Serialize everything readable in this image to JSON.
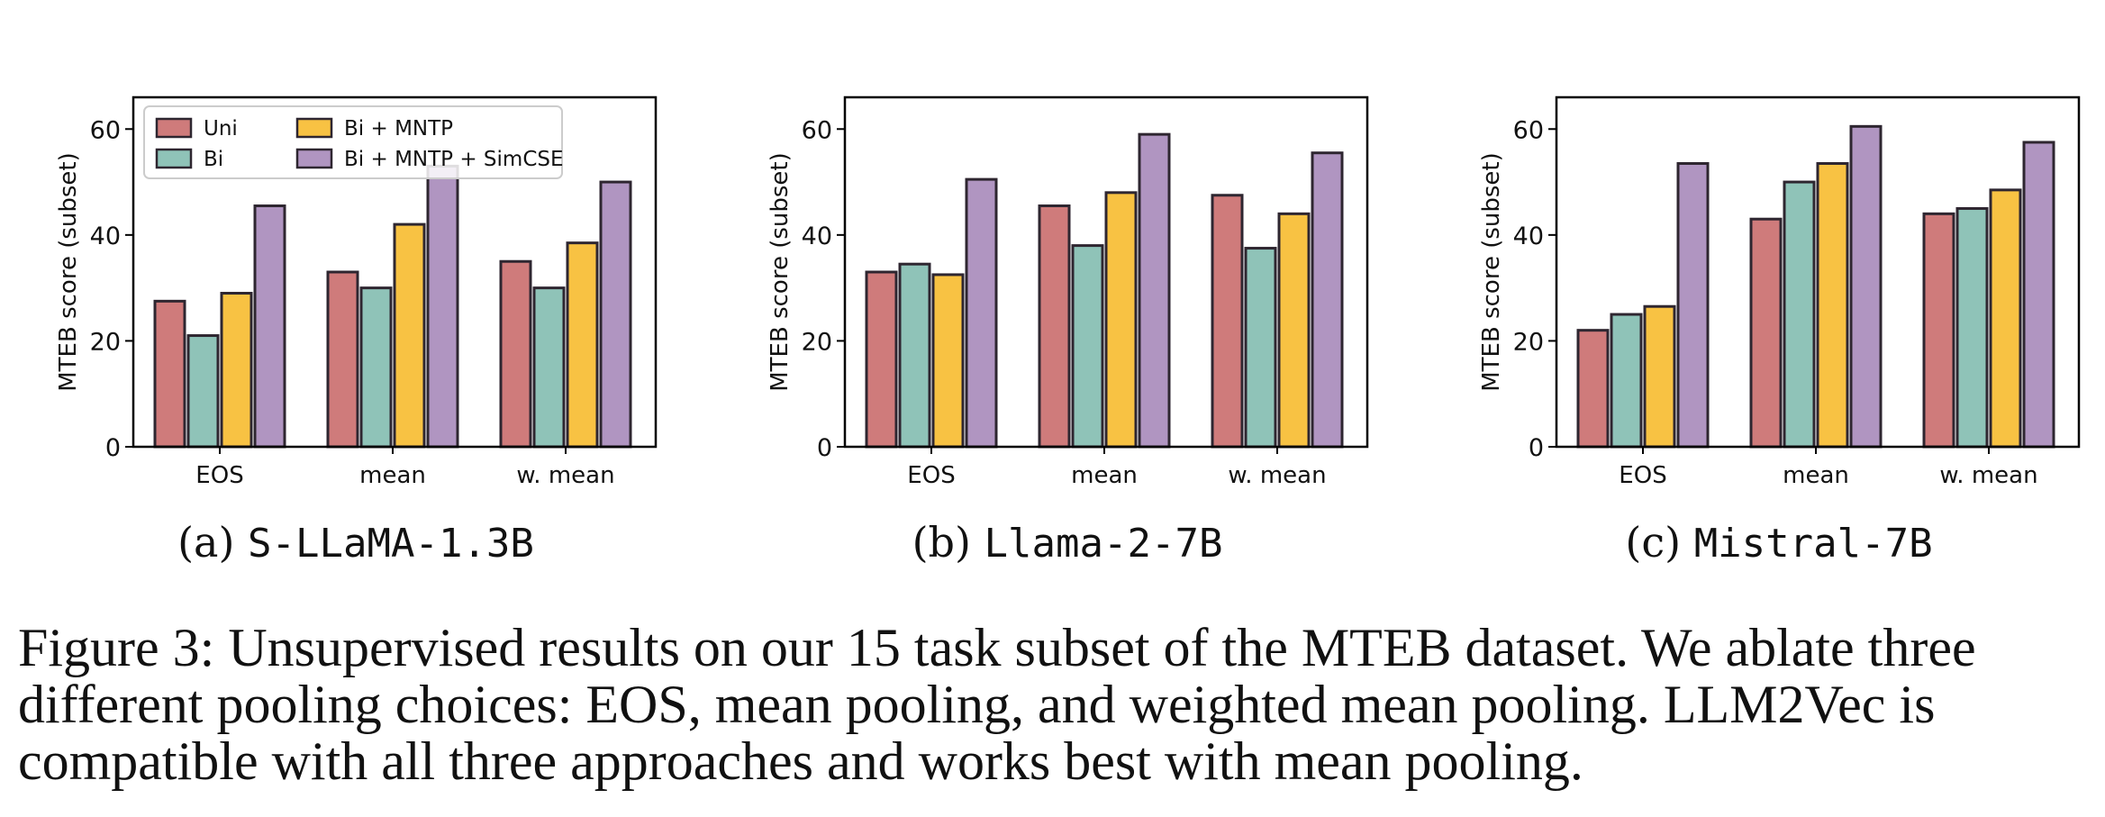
{
  "chart_data": [
    {
      "type": "bar",
      "panel_label": "(a)",
      "panel_model": "S-LLaMA-1.3B",
      "categories": [
        "EOS",
        "mean",
        "w. mean"
      ],
      "ylabel": "MTEB score (subset)",
      "ylim": [
        0,
        66
      ],
      "yticks": [
        "0",
        "20",
        "40",
        "60"
      ],
      "grid": false,
      "legend_position": "top-left",
      "series": [
        {
          "name": "Uni",
          "values": [
            27.5,
            33,
            35
          ]
        },
        {
          "name": "Bi",
          "values": [
            21,
            30,
            30
          ]
        },
        {
          "name": "Bi + MNTP",
          "values": [
            29,
            42,
            38.5
          ]
        },
        {
          "name": "Bi + MNTP + SimCSE",
          "values": [
            45.5,
            53,
            50
          ]
        }
      ]
    },
    {
      "type": "bar",
      "panel_label": "(b)",
      "panel_model": "Llama-2-7B",
      "categories": [
        "EOS",
        "mean",
        "w. mean"
      ],
      "ylabel": "MTEB score (subset)",
      "ylim": [
        0,
        66
      ],
      "yticks": [
        "0",
        "20",
        "40",
        "60"
      ],
      "grid": false,
      "series": [
        {
          "name": "Uni",
          "values": [
            33,
            45.5,
            47.5
          ]
        },
        {
          "name": "Bi",
          "values": [
            34.5,
            38,
            37.5
          ]
        },
        {
          "name": "Bi + MNTP",
          "values": [
            32.5,
            48,
            44
          ]
        },
        {
          "name": "Bi + MNTP + SimCSE",
          "values": [
            50.5,
            59,
            55.5
          ]
        }
      ]
    },
    {
      "type": "bar",
      "panel_label": "(c)",
      "panel_model": "Mistral-7B",
      "categories": [
        "EOS",
        "mean",
        "w. mean"
      ],
      "ylabel": "MTEB score (subset)",
      "ylim": [
        0,
        66
      ],
      "yticks": [
        "0",
        "20",
        "40",
        "60"
      ],
      "grid": false,
      "series": [
        {
          "name": "Uni",
          "values": [
            22,
            43,
            44
          ]
        },
        {
          "name": "Bi",
          "values": [
            25,
            50,
            45
          ]
        },
        {
          "name": "Bi + MNTP",
          "values": [
            26.5,
            53.5,
            48.5
          ]
        },
        {
          "name": "Bi + MNTP + SimCSE",
          "values": [
            53.5,
            60.5,
            57.5
          ]
        }
      ]
    }
  ],
  "colors": {
    "Uni": "#cf7b7b",
    "Bi": "#8fc3b8",
    "Bi + MNTP": "#f8c243",
    "Bi + MNTP + SimCSE": "#b095c1",
    "edge": "#2e2630"
  },
  "caption": "Figure 3: Unsupervised results on our 15 task subset of the MTEB dataset. We ablate three different pooling choices: EOS, mean pooling, and weighted mean pooling. LLM2Vec is compatible with all three approaches and works best with mean pooling."
}
